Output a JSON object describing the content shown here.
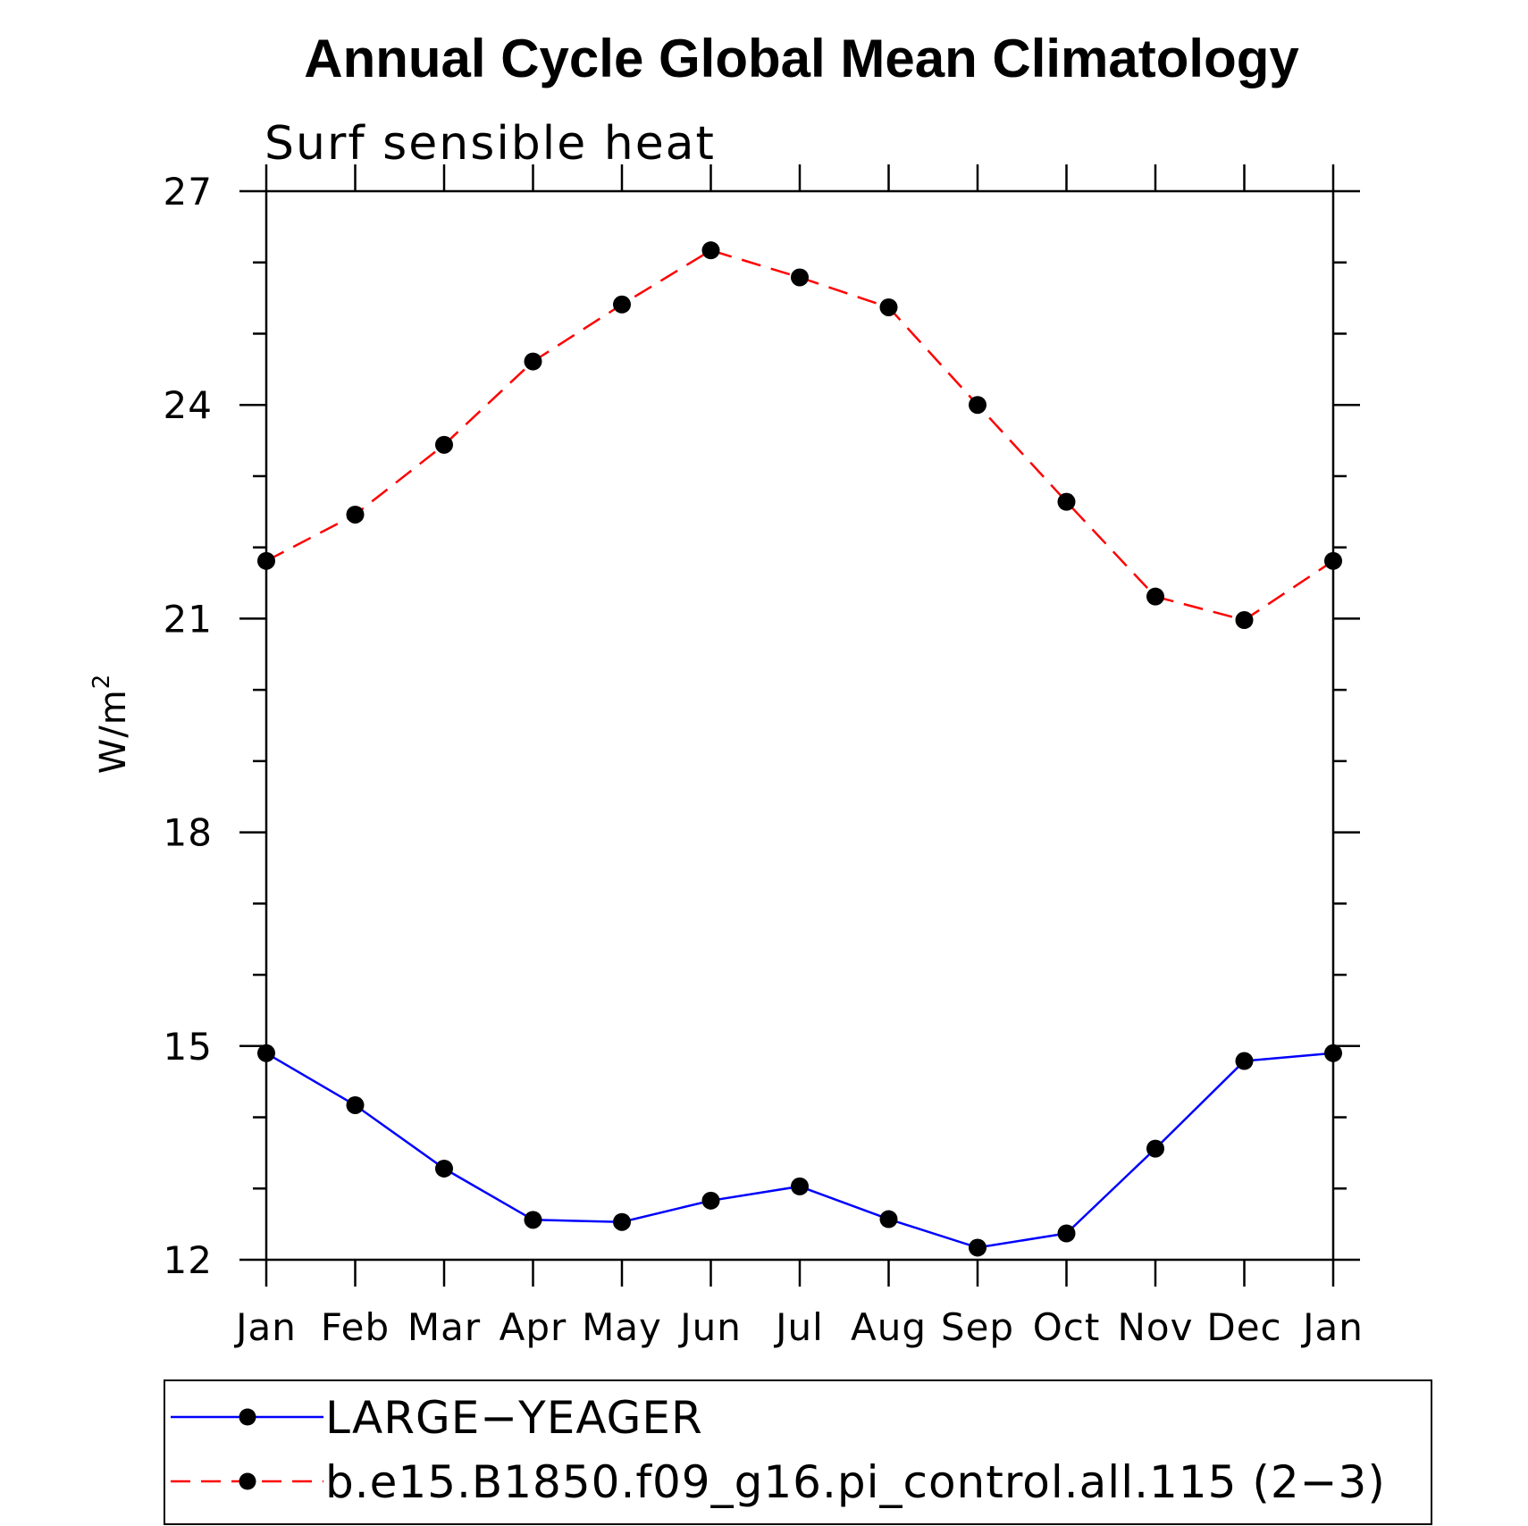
{
  "chart_data": {
    "type": "line",
    "title": "Annual Cycle Global Mean Climatology",
    "subtitle": "Surf sensible heat",
    "ylabel": "W/m",
    "ylabel_superscript": "2",
    "xlabel": "",
    "ylim": [
      12,
      27
    ],
    "yticks": [
      "12",
      "15",
      "18",
      "21",
      "24",
      "27"
    ],
    "categories": [
      "Jan",
      "Feb",
      "Mar",
      "Apr",
      "May",
      "Jun",
      "Jul",
      "Aug",
      "Sep",
      "Oct",
      "Nov",
      "Dec",
      "Jan"
    ],
    "grid": false,
    "legend_position": "bottom",
    "series": [
      {
        "name": "LARGE−YEAGER",
        "color": "#0000ff",
        "line_style": "solid",
        "marker": "circle",
        "values": [
          14.9,
          14.17,
          13.28,
          12.56,
          12.53,
          12.83,
          13.03,
          12.57,
          12.17,
          12.37,
          13.56,
          14.79,
          14.9
        ]
      },
      {
        "name": "b.e15.B1850.f09_g16.pi_control.all.115 (2−3)",
        "color": "#ff0000",
        "line_style": "dashed",
        "marker": "circle",
        "values": [
          21.81,
          22.46,
          23.44,
          24.61,
          25.41,
          26.17,
          25.79,
          25.37,
          24.0,
          22.64,
          21.31,
          20.98,
          21.81
        ]
      }
    ]
  }
}
